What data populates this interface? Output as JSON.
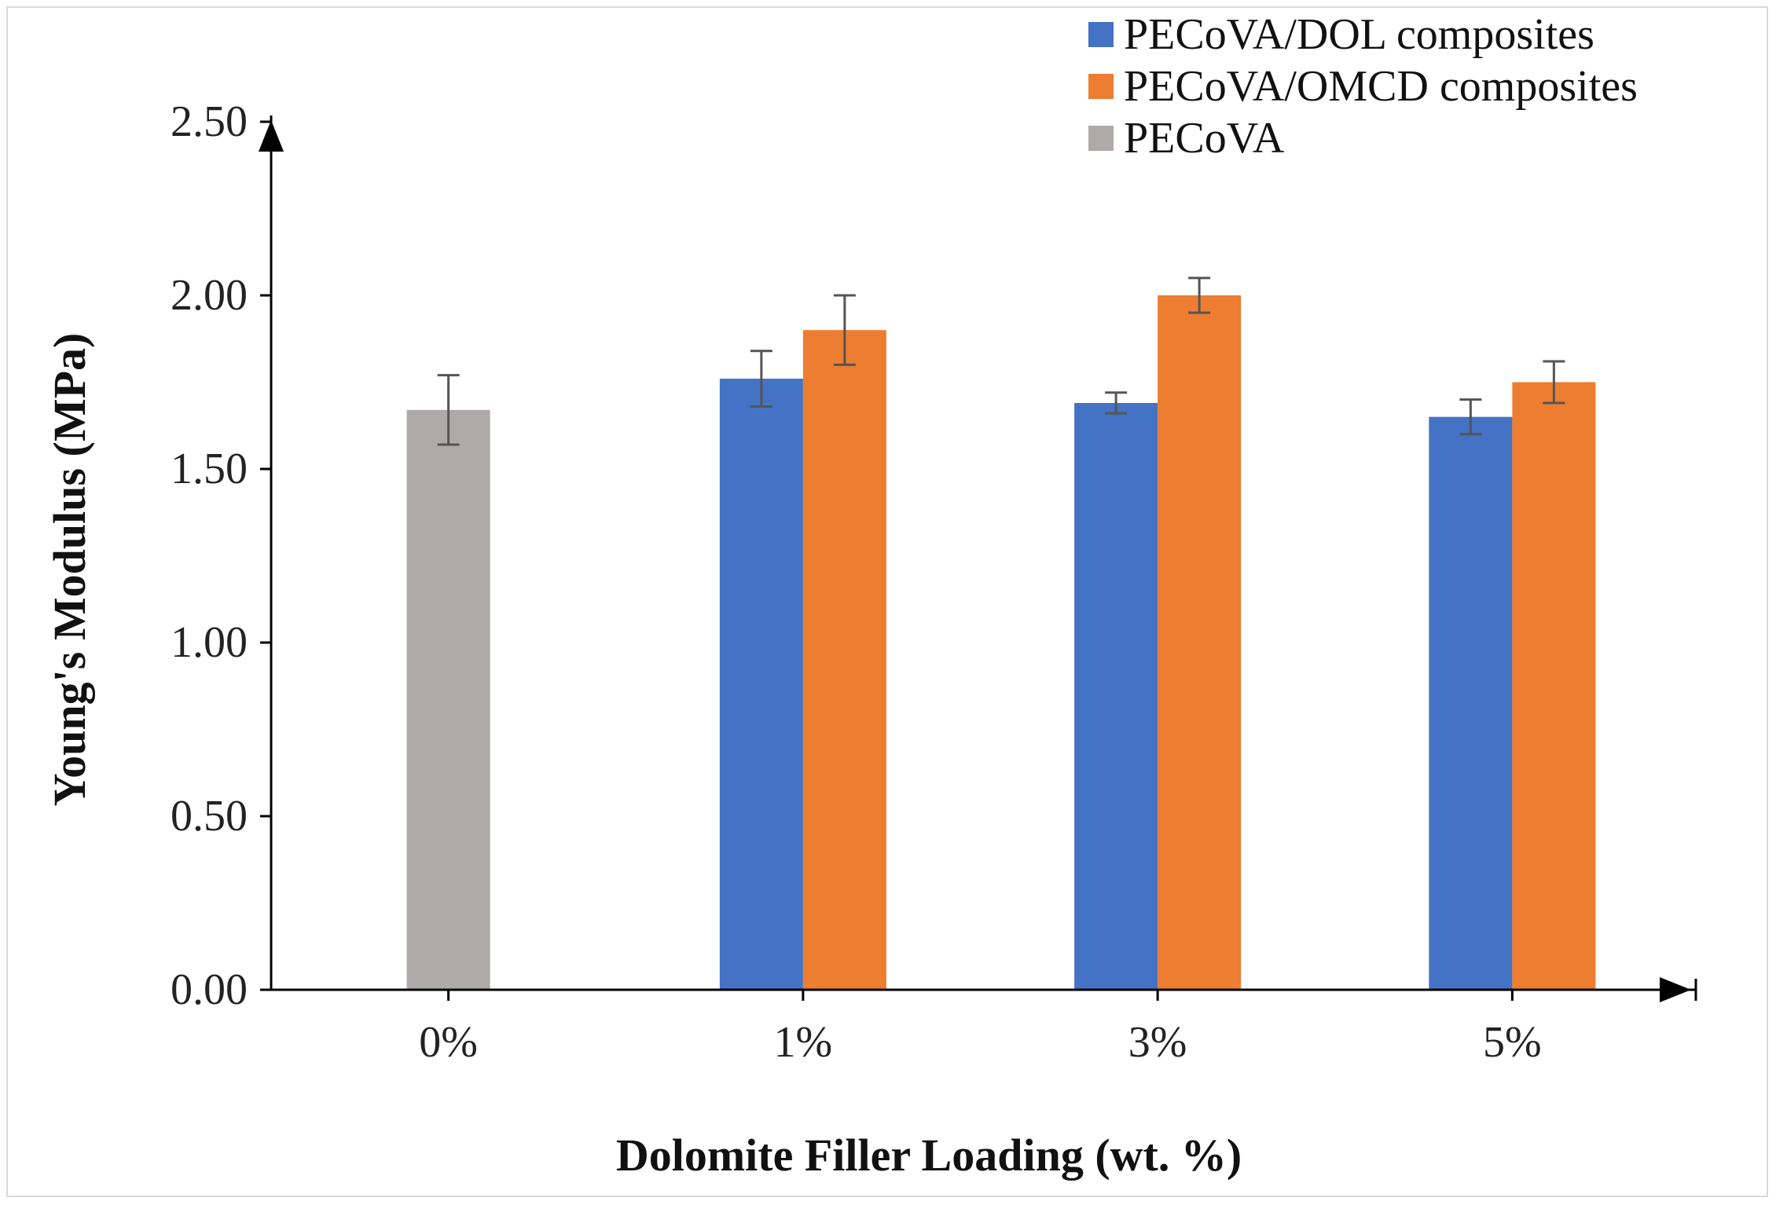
{
  "chart_data": {
    "type": "bar",
    "title": "",
    "xlabel": "Dolomite Filler Loading (wt. %)",
    "ylabel": "Young's Modulus (MPa)",
    "ylim": [
      0,
      2.5
    ],
    "yticks": [
      "0.00",
      "0.50",
      "1.00",
      "1.50",
      "2.00",
      "2.50"
    ],
    "categories": [
      "0%",
      "1%",
      "3%",
      "5%"
    ],
    "legend_position": "top-right",
    "error_bars": true,
    "series": [
      {
        "name": "PECoVA/DOL composites",
        "color": "#4472C4",
        "values": [
          null,
          1.76,
          1.69,
          1.65
        ],
        "errors": [
          null,
          0.08,
          0.03,
          0.05
        ]
      },
      {
        "name": "PECoVA/OMCD composites",
        "color": "#ED7D31",
        "values": [
          null,
          1.9,
          2.0,
          1.75
        ],
        "errors": [
          null,
          0.1,
          0.05,
          0.06
        ]
      },
      {
        "name": "PECoVA",
        "color": "#AEAAAA",
        "values": [
          1.67,
          null,
          null,
          null
        ],
        "errors": [
          0.1,
          null,
          null,
          null
        ]
      }
    ]
  }
}
